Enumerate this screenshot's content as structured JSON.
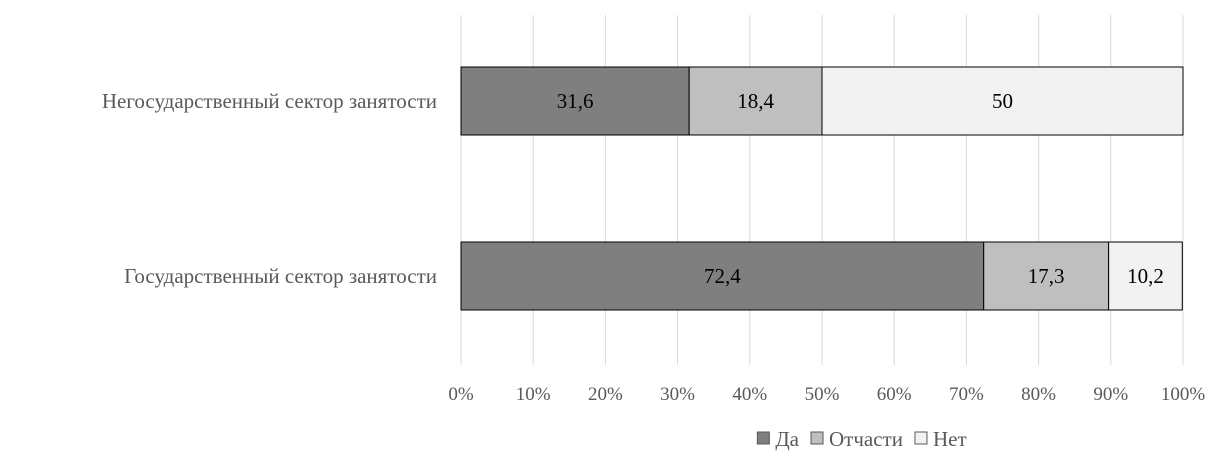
{
  "chart_data": {
    "type": "bar",
    "orientation": "horizontal",
    "stacked": "percent",
    "categories": [
      "Негосударственный сектор занятости",
      "Государственный сектор занятости"
    ],
    "series": [
      {
        "name": "Да",
        "values": [
          31.6,
          72.4
        ],
        "color": "#7f7f7f"
      },
      {
        "name": "Отчасти",
        "values": [
          18.4,
          17.3
        ],
        "color": "#bfbfbf"
      },
      {
        "name": "Нет",
        "values": [
          50,
          10.2
        ],
        "color": "#f2f2f2"
      }
    ],
    "data_labels": [
      [
        "31,6",
        "72,4"
      ],
      [
        "18,4",
        "17,3"
      ],
      [
        "50",
        "10,2"
      ]
    ],
    "xticks": [
      "0%",
      "10%",
      "20%",
      "30%",
      "40%",
      "50%",
      "60%",
      "70%",
      "80%",
      "90%",
      "100%"
    ],
    "xlim": [
      0,
      100
    ],
    "grid": "vertical",
    "legend_position": "bottom",
    "bar_edge_color": "#000000",
    "gridline_color": "#d9d9d9"
  }
}
